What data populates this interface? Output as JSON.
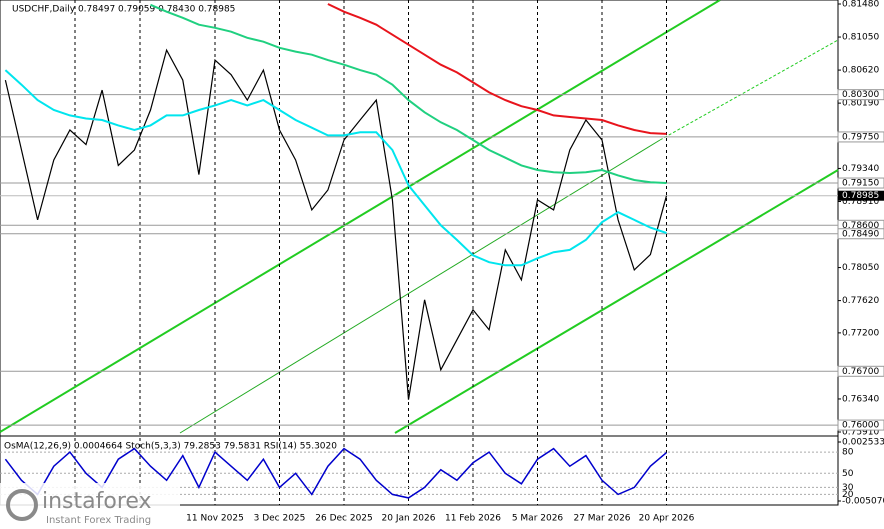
{
  "chart_data": [
    {
      "type": "line",
      "title": "USDCHF,Daily 0.78497 0.79059 0.78430 0.78985",
      "categories": [
        null,
        null,
        null,
        null,
        null,
        null,
        null,
        null,
        null,
        null,
        null,
        null,
        null,
        "11 Nov 2025",
        null,
        null,
        null,
        "3 Dec 2025",
        null,
        null,
        null,
        "26 Dec 2025",
        null,
        null,
        null,
        "20 Jan 2026",
        null,
        null,
        null,
        "11 Feb 2026",
        null,
        null,
        null,
        "5 Mar 2026",
        null,
        null,
        null,
        "27 Mar 2026",
        null,
        null,
        null,
        "20 Apr 2026"
      ],
      "series": [
        {
          "color": "#000000",
          "values": [
            0.8049,
            0.7958,
            0.7867,
            0.7945,
            0.7984,
            0.7965,
            0.8036,
            0.7938,
            0.7958,
            0.801,
            0.8088,
            0.8049,
            0.7926,
            0.8075,
            0.8056,
            0.8023,
            0.8062,
            0.7984,
            0.7945,
            0.788,
            0.7906,
            0.7971,
            0.7997,
            0.8023,
            0.7893,
            0.7633,
            0.7763,
            0.7672,
            0.7711,
            0.775,
            0.7724,
            0.7828,
            0.7789,
            0.7893,
            0.788,
            0.7958,
            0.7997,
            0.7971,
            0.7867,
            0.7802,
            0.7822,
            0.78985
          ]
        },
        {
          "color": "#00e5ee",
          "values": [
            0.8062,
            0.8043,
            0.8023,
            0.801,
            0.8003,
            0.7999,
            0.7997,
            0.799,
            0.7984,
            0.799,
            0.8003,
            0.8003,
            0.801,
            0.8016,
            0.8023,
            0.8016,
            0.8023,
            0.801,
            0.7997,
            0.7987,
            0.7977,
            0.7977,
            0.7981,
            0.7981,
            0.7958,
            0.7912,
            0.7886,
            0.786,
            0.7841,
            0.7821,
            0.7812,
            0.7808,
            0.7808,
            0.7817,
            0.7825,
            0.7828,
            0.7841,
            0.7864,
            0.7877,
            0.7867,
            0.7857,
            0.785
          ]
        },
        {
          "color": "#20d080",
          "values": [
            null,
            null,
            null,
            null,
            null,
            null,
            null,
            null,
            null,
            0.8147,
            0.8138,
            0.813,
            0.8121,
            0.8117,
            0.8112,
            0.8104,
            0.8099,
            0.8091,
            0.8086,
            0.8082,
            0.8075,
            0.8069,
            0.8062,
            0.8056,
            0.8043,
            0.8023,
            0.8007,
            0.7994,
            0.7984,
            0.7971,
            0.7958,
            0.7948,
            0.7938,
            0.7932,
            0.7929,
            0.7928,
            0.7929,
            0.7932,
            0.7925,
            0.7919,
            0.7916,
            0.7915
          ]
        },
        {
          "color": "#e8141c",
          "values": [
            null,
            null,
            null,
            null,
            null,
            null,
            null,
            null,
            null,
            null,
            null,
            null,
            null,
            null,
            null,
            null,
            null,
            null,
            null,
            null,
            0.8148,
            0.8138,
            0.813,
            0.8121,
            0.8108,
            0.8095,
            0.8082,
            0.8069,
            0.8059,
            0.8046,
            0.8033,
            0.8023,
            0.8015,
            0.801,
            0.8003,
            0.8001,
            0.7999,
            0.7997,
            0.799,
            0.7984,
            0.798,
            0.7979
          ]
        }
      ],
      "ylim": [
        0.7591,
        0.8148
      ],
      "yticks": [
        {
          "value": 0.8148,
          "label": "0.81480"
        },
        {
          "value": 0.8105,
          "label": "0.81050"
        },
        {
          "value": 0.8062,
          "label": "0.80620"
        },
        {
          "value": 0.8019,
          "label": "0.80190"
        },
        {
          "value": 0.7934,
          "label": "0.79340"
        },
        {
          "value": 0.7891,
          "label": "0.78910"
        },
        {
          "value": 0.7805,
          "label": "0.78050"
        },
        {
          "value": 0.7762,
          "label": "0.77620"
        },
        {
          "value": 0.772,
          "label": "0.77200"
        },
        {
          "value": 0.7634,
          "label": "0.76340"
        },
        {
          "value": 0.7591,
          "label": "0.75910"
        }
      ],
      "levels": [
        {
          "value": 0.803,
          "label": "0.80300"
        },
        {
          "value": 0.7975,
          "label": "0.79750"
        },
        {
          "value": 0.7915,
          "label": "0.79150"
        },
        {
          "value": 0.786,
          "label": "0.78600"
        },
        {
          "value": 0.7849,
          "label": "0.78490"
        },
        {
          "value": 0.767,
          "label": "0.76700"
        },
        {
          "value": 0.76,
          "label": "0.76000"
        }
      ],
      "last_price": {
        "value": 0.78985,
        "label": "0.78985"
      }
    },
    {
      "type": "line",
      "title": "OsMA(12,26,9) 0.0004664 Stoch(5,3,3) 79.2853 79.5831 RSI(14) 55.3020",
      "series": [
        {
          "color": "#0000cc",
          "values": [
            70,
            40,
            20,
            60,
            80,
            50,
            30,
            70,
            85,
            60,
            40,
            75,
            30,
            80,
            60,
            40,
            70,
            30,
            50,
            20,
            60,
            85,
            70,
            40,
            20,
            15,
            30,
            55,
            40,
            65,
            80,
            50,
            35,
            70,
            85,
            60,
            75,
            40,
            20,
            30,
            60,
            79.3
          ]
        }
      ],
      "ylim": [
        5,
        100
      ],
      "yticks": [
        80,
        50,
        30,
        20
      ],
      "y2lim": [
        -0.00507,
        0.002533
      ],
      "y2ticks": [
        {
          "value": 0.002533,
          "label": "0.002533"
        },
        {
          "value": -0.00507,
          "label": "-0.005070"
        }
      ]
    }
  ],
  "logo": {
    "name": "instaforex",
    "tagline": "Instant Forex Trading"
  }
}
